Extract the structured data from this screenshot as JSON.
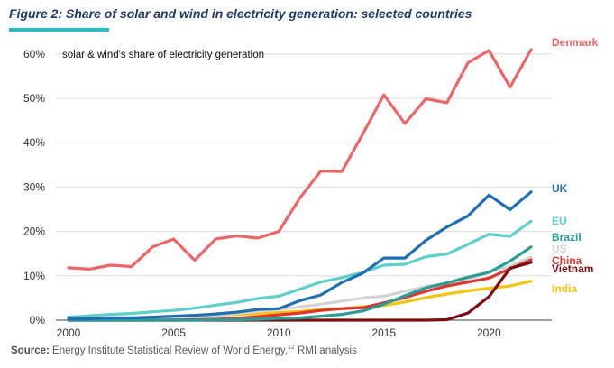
{
  "title": "Figure 2: Share of solar and wind in electricity generation: selected countries",
  "source": {
    "label": "Source:",
    "text": "Energy Institute Statistical Review of World Energy,",
    "superscript": "12",
    "suffix": "RMI analysis"
  },
  "chart_data": {
    "type": "line",
    "annotation": "solar & wind's share of electricity generation",
    "x": [
      2000,
      2001,
      2002,
      2003,
      2004,
      2005,
      2006,
      2007,
      2008,
      2009,
      2010,
      2011,
      2012,
      2013,
      2014,
      2015,
      2016,
      2017,
      2018,
      2019,
      2020,
      2021,
      2022
    ],
    "xlim": [
      2000,
      2022
    ],
    "ylim": [
      0,
      62
    ],
    "xticks": [
      "2000",
      "2005",
      "2010",
      "2015",
      "2020"
    ],
    "yticks": [
      "0%",
      "10%",
      "20%",
      "30%",
      "40%",
      "50%",
      "60%"
    ],
    "grid": "horizontal",
    "legend": "direct labels at line ends",
    "series": [
      {
        "name": "Denmark",
        "color": "#ef6566",
        "values": [
          11.8,
          11.5,
          12.4,
          12.1,
          16.5,
          18.3,
          13.5,
          18.3,
          19.0,
          18.5,
          20.0,
          27.5,
          33.6,
          33.5,
          42.0,
          50.8,
          44.3,
          49.9,
          49.0,
          58.0,
          60.8,
          52.5,
          61.0
        ]
      },
      {
        "name": "UK",
        "color": "#1f6fb5",
        "values": [
          0.3,
          0.3,
          0.5,
          0.5,
          0.7,
          0.9,
          1.1,
          1.4,
          1.8,
          2.4,
          2.6,
          4.4,
          5.7,
          8.5,
          10.6,
          14.0,
          14.0,
          18.0,
          21.0,
          23.5,
          28.2,
          24.9,
          28.9
        ]
      },
      {
        "name": "EU",
        "color": "#5ecfcb",
        "values": [
          0.7,
          1.0,
          1.3,
          1.5,
          1.9,
          2.2,
          2.7,
          3.4,
          4.0,
          4.9,
          5.4,
          7.0,
          8.6,
          9.6,
          10.8,
          12.4,
          12.6,
          14.3,
          14.9,
          17.1,
          19.4,
          18.9,
          22.3
        ]
      },
      {
        "name": "Brazil",
        "color": "#2a9d97",
        "values": [
          0.0,
          0.0,
          0.0,
          0.0,
          0.0,
          0.0,
          0.0,
          0.1,
          0.1,
          0.2,
          0.4,
          0.5,
          0.9,
          1.3,
          2.1,
          3.6,
          5.5,
          7.3,
          8.4,
          9.7,
          10.8,
          13.3,
          16.5
        ]
      },
      {
        "name": "US",
        "color": "#d3d3d3",
        "values": [
          0.1,
          0.2,
          0.3,
          0.3,
          0.4,
          0.5,
          0.8,
          0.9,
          1.5,
          2.0,
          2.4,
          3.0,
          3.6,
          4.3,
          5.0,
          5.4,
          6.5,
          7.6,
          8.3,
          9.1,
          10.8,
          12.2,
          14.2
        ]
      },
      {
        "name": "China",
        "color": "#e0342c",
        "values": [
          0.0,
          0.0,
          0.0,
          0.0,
          0.0,
          0.0,
          0.1,
          0.2,
          0.4,
          0.8,
          1.2,
          1.6,
          2.2,
          2.6,
          2.8,
          3.9,
          5.1,
          6.5,
          7.7,
          8.6,
          9.5,
          11.6,
          13.6
        ]
      },
      {
        "name": "Vietnam",
        "color": "#7a0f12",
        "values": [
          0.0,
          0.0,
          0.0,
          0.0,
          0.0,
          0.0,
          0.0,
          0.0,
          0.0,
          0.0,
          0.0,
          0.0,
          0.0,
          0.0,
          0.0,
          0.0,
          0.0,
          0.0,
          0.1,
          1.6,
          5.3,
          11.7,
          13.0
        ]
      },
      {
        "name": "India",
        "color": "#f6c310",
        "values": [
          0.3,
          0.4,
          0.5,
          0.5,
          0.6,
          0.7,
          0.9,
          1.1,
          1.3,
          1.5,
          1.7,
          2.0,
          2.4,
          2.6,
          3.0,
          3.3,
          4.1,
          5.1,
          5.9,
          6.6,
          7.2,
          7.7,
          8.8
        ]
      }
    ]
  }
}
